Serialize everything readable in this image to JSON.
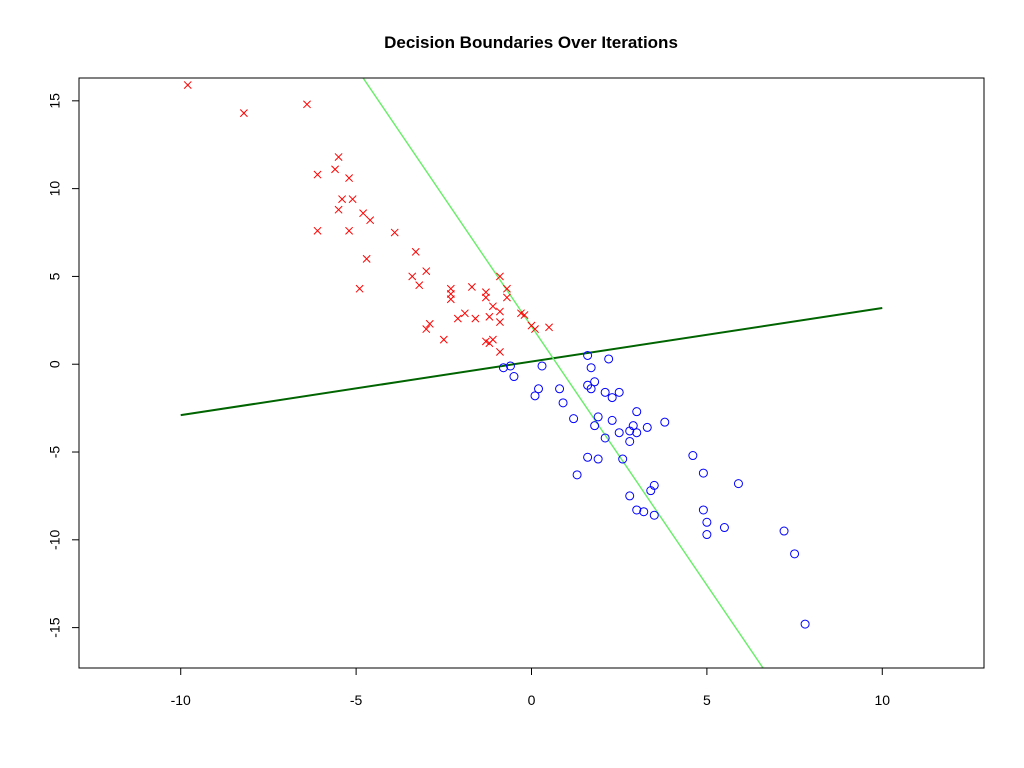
{
  "chart_data": {
    "type": "scatter",
    "title": "Decision Boundaries Over Iterations",
    "xlabel": "",
    "ylabel": "",
    "xlim": [
      -12.9,
      12.9
    ],
    "ylim": [
      -17.3,
      16.3
    ],
    "x_ticks": [
      -10,
      -5,
      0,
      5,
      10
    ],
    "y_ticks": [
      -15,
      -10,
      -5,
      0,
      5,
      10,
      15
    ],
    "grid": false,
    "legend": "none",
    "series": [
      {
        "marker": "x",
        "color": "#ff0000",
        "points": [
          [
            -9.8,
            15.9
          ],
          [
            -8.2,
            14.3
          ],
          [
            -6.4,
            14.8
          ],
          [
            -5.5,
            11.8
          ],
          [
            -5.6,
            11.1
          ],
          [
            -6.1,
            10.8
          ],
          [
            -5.2,
            10.6
          ],
          [
            -5.4,
            9.4
          ],
          [
            -5.1,
            9.4
          ],
          [
            -5.5,
            8.8
          ],
          [
            -4.8,
            8.6
          ],
          [
            -4.6,
            8.2
          ],
          [
            -6.1,
            7.6
          ],
          [
            -5.2,
            7.6
          ],
          [
            -3.9,
            7.5
          ],
          [
            -3.3,
            6.4
          ],
          [
            -4.7,
            6.0
          ],
          [
            -3.0,
            5.3
          ],
          [
            -3.4,
            5.0
          ],
          [
            -3.2,
            4.5
          ],
          [
            -4.9,
            4.3
          ],
          [
            -2.3,
            4.3
          ],
          [
            -1.7,
            4.4
          ],
          [
            -2.3,
            4.0
          ],
          [
            -1.3,
            4.1
          ],
          [
            -2.3,
            3.7
          ],
          [
            -1.3,
            3.8
          ],
          [
            -0.9,
            5.0
          ],
          [
            -0.7,
            4.3
          ],
          [
            -0.7,
            3.8
          ],
          [
            -1.1,
            3.3
          ],
          [
            -0.9,
            3.0
          ],
          [
            -1.9,
            2.9
          ],
          [
            -2.1,
            2.6
          ],
          [
            -1.6,
            2.6
          ],
          [
            -1.2,
            2.7
          ],
          [
            -0.3,
            2.9
          ],
          [
            -0.2,
            2.8
          ],
          [
            -0.9,
            2.4
          ],
          [
            0.0,
            2.2
          ],
          [
            0.1,
            2.0
          ],
          [
            0.5,
            2.1
          ],
          [
            -2.9,
            2.3
          ],
          [
            -3.0,
            2.0
          ],
          [
            -2.5,
            1.4
          ],
          [
            -1.3,
            1.3
          ],
          [
            -1.1,
            1.4
          ],
          [
            -1.2,
            1.2
          ],
          [
            -0.9,
            0.7
          ]
        ]
      },
      {
        "marker": "circle",
        "color": "#0000ff",
        "points": [
          [
            1.6,
            0.5
          ],
          [
            2.2,
            0.3
          ],
          [
            -0.8,
            -0.2
          ],
          [
            -0.6,
            -0.1
          ],
          [
            0.3,
            -0.1
          ],
          [
            1.7,
            -0.2
          ],
          [
            -0.5,
            -0.7
          ],
          [
            1.8,
            -1.0
          ],
          [
            1.6,
            -1.2
          ],
          [
            1.7,
            -1.4
          ],
          [
            0.2,
            -1.4
          ],
          [
            0.8,
            -1.4
          ],
          [
            2.1,
            -1.6
          ],
          [
            2.5,
            -1.6
          ],
          [
            2.3,
            -1.9
          ],
          [
            0.1,
            -1.8
          ],
          [
            0.9,
            -2.2
          ],
          [
            3.0,
            -2.7
          ],
          [
            1.9,
            -3.0
          ],
          [
            1.2,
            -3.1
          ],
          [
            2.3,
            -3.2
          ],
          [
            3.8,
            -3.3
          ],
          [
            1.8,
            -3.5
          ],
          [
            2.9,
            -3.5
          ],
          [
            3.3,
            -3.6
          ],
          [
            2.8,
            -3.8
          ],
          [
            2.5,
            -3.9
          ],
          [
            3.0,
            -3.9
          ],
          [
            2.1,
            -4.2
          ],
          [
            2.8,
            -4.4
          ],
          [
            4.6,
            -5.2
          ],
          [
            1.6,
            -5.3
          ],
          [
            1.9,
            -5.4
          ],
          [
            2.6,
            -5.4
          ],
          [
            4.9,
            -6.2
          ],
          [
            1.3,
            -6.3
          ],
          [
            5.9,
            -6.8
          ],
          [
            3.5,
            -6.9
          ],
          [
            3.4,
            -7.2
          ],
          [
            2.8,
            -7.5
          ],
          [
            4.9,
            -8.3
          ],
          [
            3.0,
            -8.3
          ],
          [
            3.2,
            -8.4
          ],
          [
            3.5,
            -8.6
          ],
          [
            5.0,
            -9.0
          ],
          [
            5.5,
            -9.3
          ],
          [
            7.2,
            -9.5
          ],
          [
            5.0,
            -9.7
          ],
          [
            7.5,
            -10.8
          ],
          [
            7.8,
            -14.8
          ]
        ]
      }
    ],
    "lines": [
      {
        "color": "#006400",
        "x": [
          -10,
          10
        ],
        "y": [
          -2.9,
          3.2
        ]
      },
      {
        "color": "#66ee66",
        "x": [
          -4.8,
          6.6
        ],
        "y": [
          16.3,
          -17.3
        ]
      }
    ]
  }
}
